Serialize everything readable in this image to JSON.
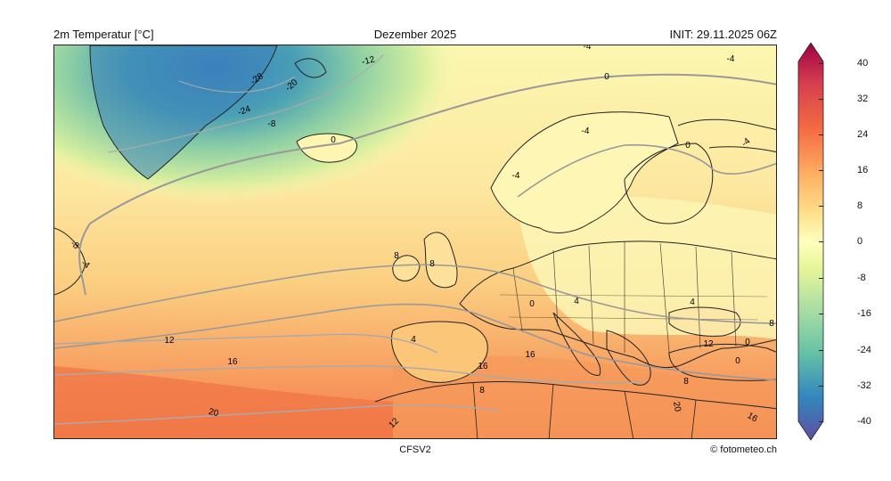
{
  "header": {
    "variable": "2m Temperatur [°C]",
    "period": "Dezember 2025",
    "init": "INIT: 29.11.2025 06Z"
  },
  "footer": {
    "model": "CFSV2",
    "credit": "© fotometeo.ch"
  },
  "colorbar": {
    "ticks": [
      "40",
      "32",
      "24",
      "16",
      "8",
      "0",
      "-8",
      "-16",
      "-24",
      "-32",
      "-40"
    ],
    "min": -40,
    "max": 40,
    "colors": {
      "top": "#9e0142",
      "warm": "#f46d43",
      "mild": "#fdae61",
      "neutral": "#ffffbf",
      "cool": "#abdda4",
      "cold": "#3288bd",
      "bottom": "#5e4fa2"
    }
  },
  "contour_labels": [
    {
      "text": "-4"
    },
    {
      "text": "-12"
    },
    {
      "text": "-4"
    },
    {
      "text": "0"
    },
    {
      "text": "-28"
    },
    {
      "text": "-20"
    },
    {
      "text": "-24"
    },
    {
      "text": "-8"
    },
    {
      "text": "0"
    },
    {
      "text": "-4"
    },
    {
      "text": "0"
    },
    {
      "text": "-4"
    },
    {
      "text": "-4"
    },
    {
      "text": "-8"
    },
    {
      "text": "-4"
    },
    {
      "text": "8"
    },
    {
      "text": "8"
    },
    {
      "text": "0"
    },
    {
      "text": "4"
    },
    {
      "text": "4"
    },
    {
      "text": "8"
    },
    {
      "text": "12"
    },
    {
      "text": "4"
    },
    {
      "text": "12"
    },
    {
      "text": "16"
    },
    {
      "text": "16"
    },
    {
      "text": "16"
    },
    {
      "text": "0"
    },
    {
      "text": "0"
    },
    {
      "text": "8"
    },
    {
      "text": "8"
    },
    {
      "text": "20"
    },
    {
      "text": "20"
    },
    {
      "text": "12"
    },
    {
      "text": "16"
    }
  ]
}
